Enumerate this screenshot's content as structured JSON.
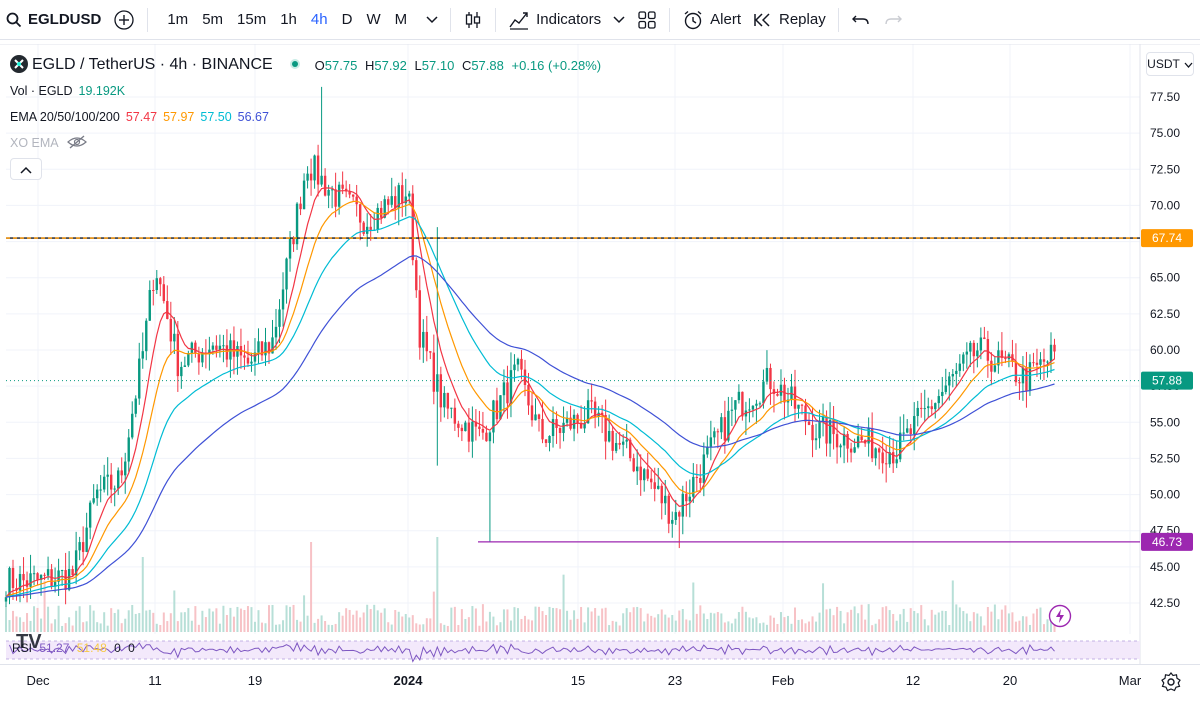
{
  "toolbar": {
    "symbol": "EGLDUSD",
    "intervals": [
      "1m",
      "5m",
      "15m",
      "1h",
      "4h",
      "D",
      "W",
      "M"
    ],
    "active_interval": "4h",
    "indicators_label": "Indicators",
    "alert_label": "Alert",
    "replay_label": "Replay"
  },
  "legend": {
    "title": "EGLD / TetherUS · 4h · BINANCE",
    "ohlc": {
      "o_label": "O",
      "o": "57.75",
      "h_label": "H",
      "h": "57.92",
      "l_label": "L",
      "l": "57.10",
      "c_label": "C",
      "c": "57.88",
      "change": "+0.16 (+0.28%)"
    },
    "volume": {
      "label": "Vol · EGLD",
      "value": "19.192K"
    },
    "ema": {
      "label": "EMA 20/50/100/200",
      "v20": "57.47",
      "v50": "57.97",
      "v100": "57.50",
      "v200": "56.67"
    },
    "xo_ema": {
      "label": "XO EMA"
    }
  },
  "currency": "USDT",
  "price_axis": {
    "ticks": [
      "77.50",
      "75.00",
      "72.50",
      "70.00",
      "67.50",
      "65.00",
      "62.50",
      "60.00",
      "57.50",
      "55.00",
      "52.50",
      "50.00",
      "47.50",
      "45.00",
      "42.50"
    ],
    "resistance_label": "67.74",
    "last_label": "57.88",
    "support_label": "46.73"
  },
  "rsi": {
    "label": "RSI",
    "v1": "51.27",
    "v2": "51.48",
    "v3": "0",
    "v4": "0"
  },
  "time_axis": {
    "labels": [
      "Dec",
      "11",
      "19",
      "2024",
      "15",
      "23",
      "Feb",
      "12",
      "20",
      "Mar"
    ]
  },
  "colors": {
    "up": "#089981",
    "down": "#f23645",
    "ema20": "#f23645",
    "ema50": "#ff9800",
    "ema100": "#00bcd4",
    "ema200": "#3f51d6",
    "resistance": "#ff9800",
    "support": "#9c27b0",
    "rsi": "#7e57c2"
  },
  "chart_data": {
    "type": "candlestick",
    "title": "EGLD / TetherUS · 4h · BINANCE",
    "price_range": [
      40.5,
      78.5
    ],
    "key_levels": [
      67.74,
      46.73
    ],
    "last_price": 57.88,
    "x_labels": [
      "Dec",
      "11",
      "19",
      "2024",
      "15",
      "23",
      "Feb",
      "12",
      "20",
      "Mar"
    ],
    "close_path": [
      {
        "date": "Dec 1",
        "close": 44.0
      },
      {
        "date": "Dec 4",
        "close": 44.5
      },
      {
        "date": "Dec 6",
        "close": 50.0
      },
      {
        "date": "Dec 8",
        "close": 51.0
      },
      {
        "date": "Dec 10",
        "close": 60.0
      },
      {
        "date": "Dec 11",
        "close": 66.0
      },
      {
        "date": "Dec 13",
        "close": 59.0
      },
      {
        "date": "Dec 16",
        "close": 60.5
      },
      {
        "date": "Dec 19",
        "close": 59.0
      },
      {
        "date": "Dec 21",
        "close": 60.5
      },
      {
        "date": "Dec 24",
        "close": 73.0
      },
      {
        "date": "Dec 26",
        "close": 71.0
      },
      {
        "date": "Dec 29",
        "close": 69.0
      },
      {
        "date": "Jan 1",
        "close": 71.0
      },
      {
        "date": "Jan 2",
        "close": 61.0
      },
      {
        "date": "Jan 4",
        "close": 56.0
      },
      {
        "date": "Jan 7",
        "close": 54.0
      },
      {
        "date": "Jan 10",
        "close": 58.5
      },
      {
        "date": "Jan 12",
        "close": 54.0
      },
      {
        "date": "Jan 16",
        "close": 55.5
      },
      {
        "date": "Jan 20",
        "close": 52.0
      },
      {
        "date": "Jan 23",
        "close": 48.5
      },
      {
        "date": "Jan 26",
        "close": 53.0
      },
      {
        "date": "Jan 28",
        "close": 56.0
      },
      {
        "date": "Jan 31",
        "close": 58.0
      },
      {
        "date": "Feb 3",
        "close": 54.5
      },
      {
        "date": "Feb 8",
        "close": 53.0
      },
      {
        "date": "Feb 10",
        "close": 56.0
      },
      {
        "date": "Feb 13",
        "close": 60.0
      },
      {
        "date": "Feb 16",
        "close": 58.0
      },
      {
        "date": "Feb 19",
        "close": 61.0
      },
      {
        "date": "Feb 22",
        "close": 56.5
      },
      {
        "date": "Feb 24",
        "close": 57.88
      }
    ]
  }
}
